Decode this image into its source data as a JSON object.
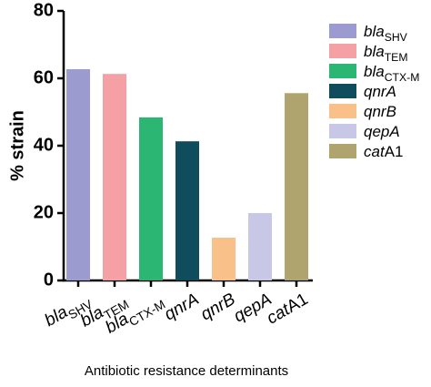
{
  "chart_data": {
    "type": "bar",
    "y_label": "% strain",
    "x_label": "Antibiotic resistance determinants",
    "categories": [
      {
        "italic": "bla",
        "sub": "SHV"
      },
      {
        "italic": "bla",
        "sub": "TEM"
      },
      {
        "italic": "bla",
        "sub": "CTX-M"
      },
      {
        "italic": "qnrA"
      },
      {
        "italic": "qnrB"
      },
      {
        "italic": "qepA"
      },
      {
        "italic": "cat",
        "plain": "A1"
      }
    ],
    "values": [
      62.7,
      61.3,
      48.4,
      41.3,
      12.7,
      20,
      55.6
    ],
    "colors": [
      "#9b9bd0",
      "#f4a0a4",
      "#2bb673",
      "#0f4c5c",
      "#f9c08a",
      "#c8c8e6",
      "#b0a46e"
    ],
    "ylim": [
      0,
      80
    ],
    "yticks": [
      0,
      20,
      40,
      60,
      80
    ],
    "legend": "right"
  }
}
